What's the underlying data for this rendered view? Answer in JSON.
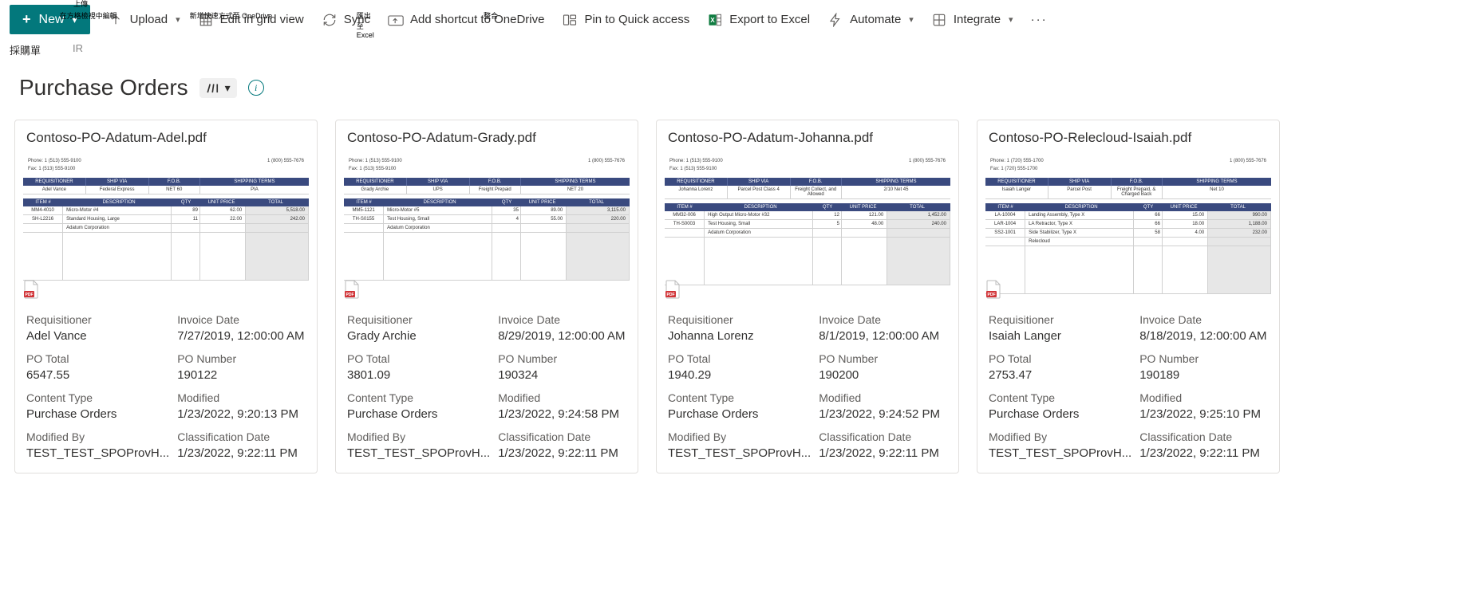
{
  "toolbar": {
    "new_label": "New",
    "hints": {
      "upload": "上傳",
      "edit_grid": "在方格檢視中編輯",
      "add_onedrive": "新增快速方式至 OneDrive",
      "export_excel": "匯出至 Excel",
      "integrate": "整合"
    },
    "upload_label": "Upload",
    "edit_grid_label": "Edit in grid view",
    "sync_label": "Sync",
    "add_onedrive_label": "Add shortcut to OneDrive",
    "pin_label": "Pin to Quick access",
    "export_label": "Export to Excel",
    "automate_label": "Automate",
    "integrate_label": "Integrate"
  },
  "breadcrumb": {
    "a": "採購單",
    "b": "IR"
  },
  "page": {
    "title": "Purchase Orders"
  },
  "labels": {
    "requisitioner": "Requisitioner",
    "invoice_date": "Invoice Date",
    "po_total": "PO Total",
    "po_number": "PO Number",
    "content_type": "Content Type",
    "modified": "Modified",
    "modified_by": "Modified By",
    "classification_date": "Classification Date"
  },
  "preview_cols": {
    "item": "ITEM #",
    "desc": "DESCRIPTION",
    "qty": "QTY",
    "price": "UNIT PRICE",
    "total": "TOTAL",
    "req": "REQUISITIONER",
    "ship": "SHIP VIA",
    "fob": "F.O.B.",
    "terms": "SHIPPING TERMS"
  },
  "cards": [
    {
      "title": "Contoso-PO-Adatum-Adel.pdf",
      "preview": {
        "phone1": "Phone: 1 (513) 555-9100",
        "phone2": "1 (800) 555-7676",
        "fax": "Fax: 1 (513) 555-9100",
        "req": "Adel Vance",
        "ship": "Federal Express",
        "fob": "NET 60",
        "terms": "PIA",
        "rows": [
          {
            "item": "MM4-4010",
            "desc": "Micro-Motor #4",
            "qty": "89",
            "price": "62.00",
            "total": "5,518.00"
          },
          {
            "item": "SH-L2216",
            "desc": "Standard Housing, Large",
            "qty": "11",
            "price": "22.00",
            "total": "242.00"
          },
          {
            "item": "",
            "desc": "Adatum Corporation",
            "qty": "",
            "price": "",
            "total": ""
          }
        ]
      },
      "meta": {
        "requisitioner": "Adel Vance",
        "invoice_date": "7/27/2019, 12:00:00 AM",
        "po_total": "6547.55",
        "po_number": "190122",
        "content_type": "Purchase Orders",
        "modified": "1/23/2022, 9:20:13 PM",
        "modified_by": "TEST_TEST_SPOProvH...",
        "classification_date": "1/23/2022, 9:22:11 PM"
      }
    },
    {
      "title": "Contoso-PO-Adatum-Grady.pdf",
      "preview": {
        "phone1": "Phone: 1 (513) 555-9100",
        "phone2": "1 (800) 555-7676",
        "fax": "Fax: 1 (513) 555-9100",
        "req": "Grady Archie",
        "ship": "UPS",
        "fob": "Freight Prepaid",
        "terms": "NET 20",
        "rows": [
          {
            "item": "MM5-1121",
            "desc": "Micro-Motor #5",
            "qty": "35",
            "price": "89.00",
            "total": "3,115.00"
          },
          {
            "item": "TH-S0155",
            "desc": "Test Housing, Small",
            "qty": "4",
            "price": "55.00",
            "total": "220.00"
          },
          {
            "item": "",
            "desc": "Adatum Corporation",
            "qty": "",
            "price": "",
            "total": ""
          }
        ]
      },
      "meta": {
        "requisitioner": "Grady Archie",
        "invoice_date": "8/29/2019, 12:00:00 AM",
        "po_total": "3801.09",
        "po_number": "190324",
        "content_type": "Purchase Orders",
        "modified": "1/23/2022, 9:24:58 PM",
        "modified_by": "TEST_TEST_SPOProvH...",
        "classification_date": "1/23/2022, 9:22:11 PM"
      }
    },
    {
      "title": "Contoso-PO-Adatum-Johanna.pdf",
      "preview": {
        "phone1": "Phone: 1 (513) 555-9100",
        "phone2": "1 (800) 555-7676",
        "fax": "Fax: 1 (513) 555-9100",
        "req": "Johanna Lorenz",
        "ship": "Parcel Post Class 4",
        "fob": "Freight Collect, and Allowed",
        "terms": "2/10 Net 45",
        "rows": [
          {
            "item": "MM32-006",
            "desc": "High Output Micro-Motor #32",
            "qty": "12",
            "price": "121.00",
            "total": "1,452.00"
          },
          {
            "item": "TH-S0003",
            "desc": "Test Housing, Small",
            "qty": "5",
            "price": "48.00",
            "total": "240.00"
          },
          {
            "item": "",
            "desc": "Adatum Corporation",
            "qty": "",
            "price": "",
            "total": ""
          }
        ]
      },
      "meta": {
        "requisitioner": "Johanna Lorenz",
        "invoice_date": "8/1/2019, 12:00:00 AM",
        "po_total": "1940.29",
        "po_number": "190200",
        "content_type": "Purchase Orders",
        "modified": "1/23/2022, 9:24:52 PM",
        "modified_by": "TEST_TEST_SPOProvH...",
        "classification_date": "1/23/2022, 9:22:11 PM"
      }
    },
    {
      "title": "Contoso-PO-Relecloud-Isaiah.pdf",
      "preview": {
        "phone1": "Phone: 1 (720) 555-1700",
        "phone2": "1 (800) 555-7676",
        "fax": "Fax: 1 (720) 555-1700",
        "req": "Isaiah Langer",
        "ship": "Parcel Post",
        "fob": "Freight Prepaid, & Charged Back",
        "terms": "Net 10",
        "rows": [
          {
            "item": "LA-10004",
            "desc": "Landing Assembly, Type X",
            "qty": "66",
            "price": "15.00",
            "total": "990.00"
          },
          {
            "item": "LAR-1004",
            "desc": "LA Retractor, Type X",
            "qty": "66",
            "price": "18.00",
            "total": "1,188.00"
          },
          {
            "item": "SS2-1001",
            "desc": "Side Stabilizer, Type X",
            "qty": "58",
            "price": "4.00",
            "total": "232.00"
          },
          {
            "item": "",
            "desc": "Relecloud",
            "qty": "",
            "price": "",
            "total": ""
          }
        ]
      },
      "meta": {
        "requisitioner": "Isaiah Langer",
        "invoice_date": "8/18/2019, 12:00:00 AM",
        "po_total": "2753.47",
        "po_number": "190189",
        "content_type": "Purchase Orders",
        "modified": "1/23/2022, 9:25:10 PM",
        "modified_by": "TEST_TEST_SPOProvH...",
        "classification_date": "1/23/2022, 9:22:11 PM"
      }
    }
  ]
}
